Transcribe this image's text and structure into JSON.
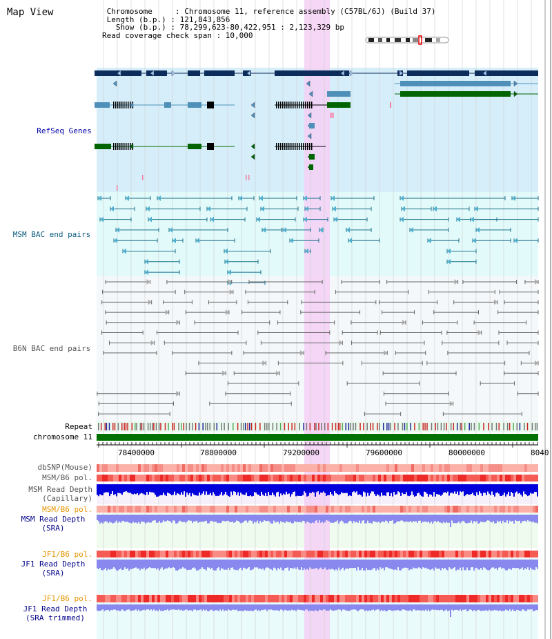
{
  "title": "Map View",
  "info": {
    "line1": " Chromosome     : Chromosome 11, reference assembly (C57BL/6J) (Build 37)",
    "line2": " Length (b.p.) : 121,843,856",
    "line3": "   Show (b.p.) : 78,299,623-80,422,951 : 2,123,329 bp",
    "line4": "Read coverage check span : 10,000"
  },
  "tracks": {
    "refseq": "RefSeq Genes",
    "msm_bac": "MSM BAC end pairs",
    "b6n_bac": "B6N BAC end pairs",
    "repeat": "Repeat",
    "chromosome": "chromosome 11",
    "dbsnp": "dbSNP(Mouse)",
    "msm_b6_pol": "MSM/B6 pol.",
    "msm_depth_cap_1": "MSM Read Depth",
    "msm_depth_cap_2": "(Capillary)",
    "msm_b6_pol2": "MSM/B6 pol.",
    "msm_depth_sra_1": "MSM Read Depth",
    "msm_depth_sra_2": "(SRA)",
    "jf1_b6_pol": "JF1/B6 pol.",
    "jf1_depth_sra_1": "JF1 Read Depth",
    "jf1_depth_sra_2": "(SRA)",
    "jf1_b6_pol2": "JF1/B6 pol.",
    "jf1_depth_trim_1": "JF1 Read Depth",
    "jf1_depth_trim_2": "(SRA trimmed)"
  },
  "axis": {
    "ticks": [
      "78400000",
      "78800000",
      "79200000",
      "79600000",
      "80000000",
      "8040"
    ]
  },
  "colors": {
    "refseq_bg": "#d6eefa",
    "msm_bg": "#e2fafa",
    "b6n_bg": "#f5f8fa",
    "highlight": "#f5d0f5",
    "navy_gene": "#0c2c5c",
    "steel_gene": "#4f90b8",
    "green_gene": "#006400",
    "teal_line": "#1a6e8a",
    "gray_line": "#666666",
    "chrom": "#007000",
    "depth_blue": "#0000dd",
    "depth_lilac": "#8888ee",
    "pol_red": "#ff4040"
  }
}
